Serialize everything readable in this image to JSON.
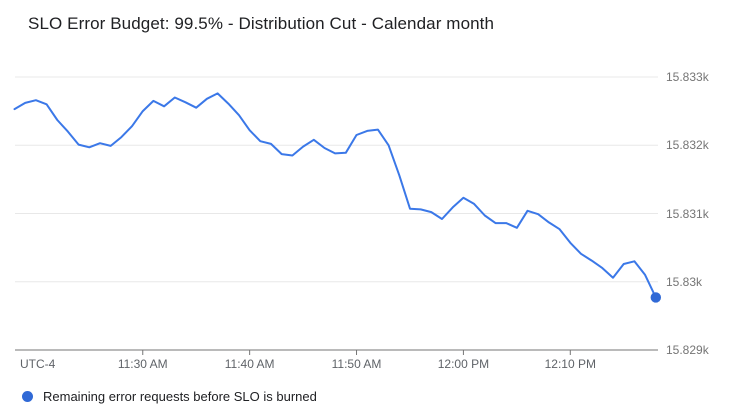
{
  "chart": {
    "title": "SLO Error Budget: 99.5% - Distribution Cut - Calendar month",
    "legend": {
      "label": "Remaining error requests before SLO is burned"
    },
    "x_axis": {
      "utc_label": "UTC-4"
    },
    "colors": {
      "line": "#3b78e8",
      "endpoint_dot": "#3069d6",
      "grid": "#e8e8e8",
      "axis": "#757575",
      "y_label_text": "#757575",
      "x_label_text": "#5f6368",
      "title_text": "#202124"
    }
  },
  "chart_data": {
    "type": "line",
    "title": "SLO Error Budget: 99.5% - Distribution Cut - Calendar month",
    "xlabel": "",
    "ylabel": "",
    "legend_position": "bottom-left",
    "grid": "horizontal-only",
    "ylim": [
      15829,
      15833
    ],
    "y_ticks": [
      {
        "label": "15.833k",
        "value": 15833
      },
      {
        "label": "15.832k",
        "value": 15832
      },
      {
        "label": "15.831k",
        "value": 15831
      },
      {
        "label": "15.83k",
        "value": 15830
      },
      {
        "label": "15.829k",
        "value": 15829
      }
    ],
    "x_ticks": [
      {
        "label": "11:30 AM",
        "index": 12
      },
      {
        "label": "11:40 AM",
        "index": 22
      },
      {
        "label": "11:50 AM",
        "index": 32
      },
      {
        "label": "12:00 PM",
        "index": 42
      },
      {
        "label": "12:10 PM",
        "index": 52
      }
    ],
    "x_interval_minutes": 1,
    "x": [
      "11:18 AM",
      "11:19 AM",
      "11:20 AM",
      "11:21 AM",
      "11:22 AM",
      "11:23 AM",
      "11:24 AM",
      "11:25 AM",
      "11:26 AM",
      "11:27 AM",
      "11:28 AM",
      "11:29 AM",
      "11:30 AM",
      "11:31 AM",
      "11:32 AM",
      "11:33 AM",
      "11:34 AM",
      "11:35 AM",
      "11:36 AM",
      "11:37 AM",
      "11:38 AM",
      "11:39 AM",
      "11:40 AM",
      "11:41 AM",
      "11:42 AM",
      "11:43 AM",
      "11:44 AM",
      "11:45 AM",
      "11:46 AM",
      "11:47 AM",
      "11:48 AM",
      "11:49 AM",
      "11:50 AM",
      "11:51 AM",
      "11:52 AM",
      "11:53 AM",
      "11:54 AM",
      "11:55 AM",
      "11:56 AM",
      "11:57 AM",
      "11:58 AM",
      "11:59 AM",
      "12:00 PM",
      "12:01 PM",
      "12:02 PM",
      "12:03 PM",
      "12:04 PM",
      "12:05 PM",
      "12:06 PM",
      "12:07 PM",
      "12:08 PM",
      "12:09 PM",
      "12:10 PM",
      "12:11 PM",
      "12:12 PM",
      "12:13 PM",
      "12:14 PM",
      "12:15 PM",
      "12:16 PM",
      "12:17 PM",
      "12:18 PM"
    ],
    "series": [
      {
        "name": "Remaining error requests before SLO is burned",
        "color": "#3b78e8",
        "endpoint_marker": true,
        "values": [
          15832.53,
          15832.62,
          15832.66,
          15832.6,
          15832.37,
          15832.2,
          15832.01,
          15831.97,
          15832.03,
          15831.99,
          15832.12,
          15832.28,
          15832.5,
          15832.65,
          15832.57,
          15832.7,
          15832.63,
          15832.55,
          15832.68,
          15832.76,
          15832.61,
          15832.44,
          15832.22,
          15832.06,
          15832.02,
          15831.87,
          15831.85,
          15831.98,
          15832.08,
          15831.96,
          15831.88,
          15831.89,
          15832.15,
          15832.21,
          15832.23,
          15832.0,
          15831.56,
          15831.07,
          15831.06,
          15831.02,
          15830.92,
          15831.09,
          15831.23,
          15831.14,
          15830.97,
          15830.86,
          15830.86,
          15830.79,
          15831.04,
          15830.99,
          15830.87,
          15830.77,
          15830.57,
          15830.41,
          15830.31,
          15830.2,
          15830.06,
          15830.26,
          15830.3,
          15830.1,
          15829.77
        ]
      }
    ]
  }
}
